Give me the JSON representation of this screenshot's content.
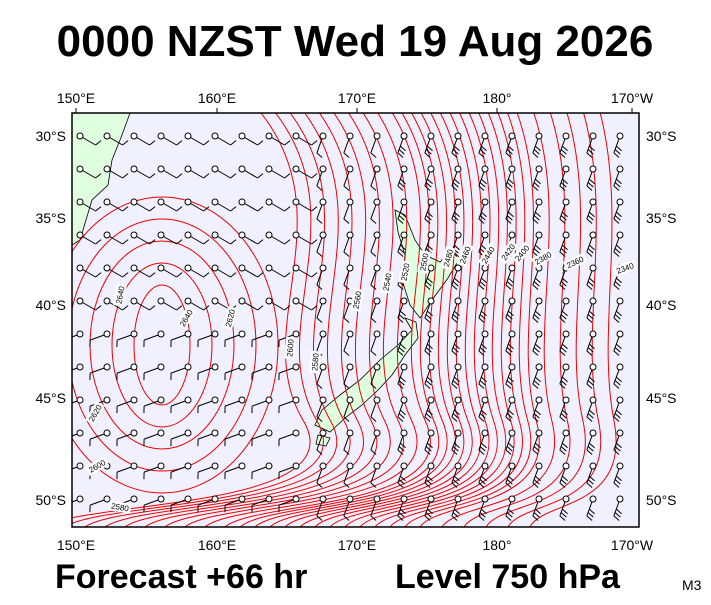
{
  "title": "0000 NZST Wed 19 Aug 2026",
  "map": {
    "lon_labels": [
      "150°E",
      "160°E",
      "170°E",
      "180°",
      "170°W"
    ],
    "lat_labels": [
      "30°S",
      "35°S",
      "40°S",
      "45°S",
      "50°S"
    ],
    "contour_labels": [
      "2640",
      "2640",
      "2620",
      "2600",
      "2580",
      "2560",
      "2540",
      "2520",
      "2500",
      "2480",
      "2460",
      "2440",
      "2420",
      "2400",
      "2380",
      "2360",
      "2340",
      "2620",
      "2600",
      "2580"
    ]
  },
  "footer": {
    "forecast": "Forecast +66 hr",
    "level": "Level 750 hPa",
    "model": "M3"
  }
}
